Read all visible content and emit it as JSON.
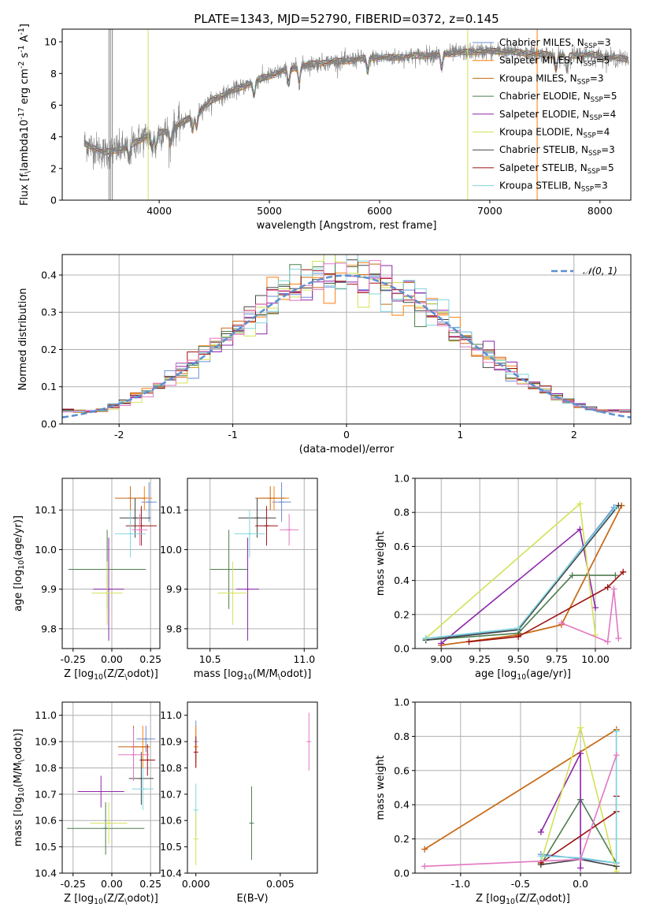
{
  "colors": [
    "#6a8ed6",
    "#ff7f0e",
    "#c46a1a",
    "#4e7d4e",
    "#8e24aa",
    "#d4e157",
    "#444444",
    "#9b1111",
    "#7fd6dc",
    "#e377c2"
  ],
  "series_names": [
    "Chabrier MILES, N$_{SSP}$=3",
    "Salpeter MILES, N$_{SSP}$=5",
    "Kroupa MILES, N$_{SSP}$=3",
    "Chabrier ELODIE, N$_{SSP}$=5",
    "Salpeter ELODIE, N$_{SSP}$=4",
    "Kroupa ELODIE, N$_{SSP}$=4",
    "Chabrier STELIB, N$_{SSP}$=3",
    "Salpeter STELIB, N$_{SSP}$=5",
    "Kroupa STELIB, N$_{SSP}$=3"
  ],
  "chart_data": [
    {
      "type": "line",
      "title": "PLATE=1343, MJD=52790, FIBERID=0372, z=0.145",
      "xlabel": "wavelength [Angstrom, rest frame]",
      "ylabel": "Flux [f$_\\lambda$10$^{-17}$ erg cm$^{-2}$ s$^{-1}$ A$^{-1}$]",
      "xlim": [
        3120,
        8280
      ],
      "ylim": [
        0,
        10.8
      ],
      "xticks": [
        4000,
        5000,
        6000,
        7000,
        8000
      ],
      "yticks": [
        0,
        2,
        4,
        6,
        8,
        10
      ],
      "grid": false,
      "legend": "upper right",
      "model_start": 3320,
      "data_range": [
        3320,
        8260
      ],
      "continuum": [
        [
          3320,
          3.6
        ],
        [
          3500,
          3.0
        ],
        [
          3700,
          3.3
        ],
        [
          3900,
          4.1
        ],
        [
          4100,
          4.4
        ],
        [
          4300,
          5.3
        ],
        [
          4500,
          6.4
        ],
        [
          4700,
          7.0
        ],
        [
          4900,
          7.6
        ],
        [
          5100,
          8.1
        ],
        [
          5300,
          8.5
        ],
        [
          5500,
          8.7
        ],
        [
          5700,
          8.8
        ],
        [
          5900,
          9.0
        ],
        [
          6100,
          9.0
        ],
        [
          6300,
          9.1
        ],
        [
          6500,
          9.2
        ],
        [
          6700,
          9.3
        ],
        [
          6900,
          9.4
        ],
        [
          7100,
          9.4
        ],
        [
          7300,
          9.3
        ],
        [
          7500,
          9.2
        ],
        [
          7700,
          9.1
        ],
        [
          7900,
          9.2
        ],
        [
          8100,
          9.0
        ],
        [
          8260,
          8.9
        ]
      ],
      "series": [
        {
          "name": "Chabrier MILES, N$_{SSP}$=3",
          "color": "#6a8ed6"
        },
        {
          "name": "Salpeter MILES, N$_{SSP}$=5",
          "color": "#ff7f0e"
        },
        {
          "name": "Kroupa MILES, N$_{SSP}$=3",
          "color": "#c46a1a"
        },
        {
          "name": "Chabrier ELODIE, N$_{SSP}$=5",
          "color": "#4e7d4e"
        },
        {
          "name": "Salpeter ELODIE, N$_{SSP}$=4",
          "color": "#8e24aa"
        },
        {
          "name": "Kroupa ELODIE, N$_{SSP}$=4",
          "color": "#d4e157"
        },
        {
          "name": "Chabrier STELIB, N$_{SSP}$=3",
          "color": "#444444"
        },
        {
          "name": "Salpeter STELIB, N$_{SSP}$=5",
          "color": "#9b1111"
        },
        {
          "name": "Kroupa STELIB, N$_{SSP}$=3",
          "color": "#7fd6dc"
        }
      ]
    },
    {
      "type": "histogram",
      "xlabel": "(data-model)/error",
      "ylabel": "Normed distribution",
      "xlim": [
        -2.5,
        2.5
      ],
      "ylim": [
        0,
        0.455
      ],
      "xticks": [
        -2,
        -1,
        0,
        1,
        2
      ],
      "yticks": [
        0.0,
        0.1,
        0.2,
        0.3,
        0.4
      ],
      "grid": true,
      "legend": "upper right",
      "reference_curve": {
        "label": "$\\mathcal{N}(0,1)$",
        "mean": 0,
        "sigma": 1,
        "color": "#5b8fd0"
      },
      "bin_width": 0.1
    },
    {
      "type": "scatter",
      "xlabel": "Z [log$_{10}$($Z/Z_\\odot$)]",
      "ylabel": "age  [log$_{10}$($age/yr$)]",
      "xlim": [
        -0.32,
        0.31
      ],
      "ylim": [
        9.75,
        10.18
      ],
      "xticks": [
        -0.25,
        0.0,
        0.25
      ],
      "yticks": [
        9.8,
        9.9,
        10.0,
        10.1
      ],
      "grid": true,
      "points": [
        {
          "x": 0.24,
          "y": 10.12,
          "xerr": 0.05,
          "yerr": 0.05,
          "color": "#6a8ed6"
        },
        {
          "x": 0.21,
          "y": 10.13,
          "xerr": 0.05,
          "yerr": 0.03,
          "color": "#ff7f0e"
        },
        {
          "x": 0.12,
          "y": 10.13,
          "xerr": 0.1,
          "yerr": 0.03,
          "color": "#c46a1a"
        },
        {
          "x": -0.03,
          "y": 9.95,
          "xerr": 0.25,
          "yerr": 0.1,
          "color": "#4e7d4e"
        },
        {
          "x": -0.02,
          "y": 9.9,
          "xerr": 0.1,
          "yerr": 0.13,
          "color": "#8e24aa"
        },
        {
          "x": -0.03,
          "y": 9.89,
          "xerr": 0.1,
          "yerr": 0.08,
          "color": "#d4e157"
        },
        {
          "x": 0.15,
          "y": 10.08,
          "xerr": 0.1,
          "yerr": 0.05,
          "color": "#444444"
        },
        {
          "x": 0.19,
          "y": 10.06,
          "xerr": 0.1,
          "yerr": 0.05,
          "color": "#9b1111"
        },
        {
          "x": 0.12,
          "y": 10.04,
          "xerr": 0.1,
          "yerr": 0.06,
          "color": "#7fd6dc"
        },
        {
          "x": 0.18,
          "y": 10.05,
          "xerr": 0.05,
          "yerr": 0.04,
          "color": "#e377c2"
        }
      ]
    },
    {
      "type": "scatter",
      "xlabel": "mass [log$_{10}$($M/M_\\odot$)]",
      "ylabel": "",
      "xlim": [
        10.38,
        11.07
      ],
      "ylim": [
        9.75,
        10.18
      ],
      "xticks": [
        10.5,
        11.0
      ],
      "yticks": [
        9.8,
        9.9,
        10.0,
        10.1
      ],
      "grid": true,
      "points": [
        {
          "x": 10.88,
          "y": 10.12,
          "xerr": 0.05,
          "yerr": 0.05,
          "color": "#6a8ed6"
        },
        {
          "x": 10.84,
          "y": 10.13,
          "xerr": 0.08,
          "yerr": 0.03,
          "color": "#ff7f0e"
        },
        {
          "x": 10.82,
          "y": 10.13,
          "xerr": 0.08,
          "yerr": 0.03,
          "color": "#c46a1a"
        },
        {
          "x": 10.6,
          "y": 9.95,
          "xerr": 0.1,
          "yerr": 0.1,
          "color": "#4e7d4e"
        },
        {
          "x": 10.7,
          "y": 9.9,
          "xerr": 0.06,
          "yerr": 0.13,
          "color": "#8e24aa"
        },
        {
          "x": 10.62,
          "y": 9.89,
          "xerr": 0.08,
          "yerr": 0.08,
          "color": "#d4e157"
        },
        {
          "x": 10.75,
          "y": 10.08,
          "xerr": 0.1,
          "yerr": 0.05,
          "color": "#444444"
        },
        {
          "x": 10.8,
          "y": 10.06,
          "xerr": 0.06,
          "yerr": 0.05,
          "color": "#9b1111"
        },
        {
          "x": 10.71,
          "y": 10.04,
          "xerr": 0.08,
          "yerr": 0.06,
          "color": "#7fd6dc"
        },
        {
          "x": 10.92,
          "y": 10.05,
          "xerr": 0.05,
          "yerr": 0.04,
          "color": "#e377c2"
        }
      ]
    },
    {
      "type": "line",
      "xlabel": "age  [log$_{10}$($age/yr$)]",
      "ylabel": "mass weight",
      "xlim": [
        8.83,
        10.23
      ],
      "ylim": [
        0,
        1.0
      ],
      "xticks": [
        9.0,
        9.25,
        9.5,
        9.75,
        10.0
      ],
      "yticks": [
        0.0,
        0.2,
        0.4,
        0.6,
        0.8,
        1.0
      ],
      "grid": true,
      "series": [
        {
          "color": "#6a8ed6",
          "points": [
            [
              8.9,
              0.06
            ],
            [
              9.5,
              0.11
            ],
            [
              10.12,
              0.83
            ]
          ]
        },
        {
          "color": "#ff7f0e",
          "points": [
            [
              9.0,
              0.02
            ],
            [
              9.5,
              0.08
            ],
            [
              9.78,
              0.14
            ],
            [
              10.17,
              0.84
            ]
          ]
        },
        {
          "color": "#c46a1a",
          "points": [
            [
              9.0,
              0.02
            ],
            [
              9.5,
              0.08
            ],
            [
              9.78,
              0.14
            ],
            [
              10.17,
              0.84
            ]
          ]
        },
        {
          "color": "#4e7d4e",
          "points": [
            [
              8.9,
              0.05
            ],
            [
              9.5,
              0.09
            ],
            [
              9.85,
              0.43
            ],
            [
              10.13,
              0.43
            ]
          ]
        },
        {
          "color": "#8e24aa",
          "points": [
            [
              9.0,
              0.03
            ],
            [
              9.9,
              0.7
            ],
            [
              10.0,
              0.24
            ]
          ]
        },
        {
          "color": "#d4e157",
          "points": [
            [
              8.9,
              0.06
            ],
            [
              9.9,
              0.85
            ],
            [
              10.0,
              0.08
            ]
          ]
        },
        {
          "color": "#444444",
          "points": [
            [
              8.9,
              0.05
            ],
            [
              9.5,
              0.11
            ],
            [
              10.15,
              0.84
            ]
          ]
        },
        {
          "color": "#9b1111",
          "points": [
            [
              9.18,
              0.04
            ],
            [
              9.5,
              0.07
            ],
            [
              10.08,
              0.36
            ],
            [
              10.18,
              0.45
            ]
          ]
        },
        {
          "color": "#7fd6dc",
          "points": [
            [
              8.9,
              0.06
            ],
            [
              9.5,
              0.12
            ],
            [
              10.13,
              0.83
            ]
          ]
        },
        {
          "color": "#e377c2",
          "points": [
            [
              9.78,
              0.15
            ],
            [
              10.08,
              0.04
            ],
            [
              10.12,
              0.35
            ],
            [
              10.15,
              0.06
            ]
          ]
        }
      ]
    },
    {
      "type": "scatter",
      "xlabel": "Z [log$_{10}$($Z/Z_\\odot$)]",
      "ylabel": "mass [log$_{10}$($M/M_\\odot$)]",
      "xlim": [
        -0.32,
        0.31
      ],
      "ylim": [
        10.4,
        11.05
      ],
      "xticks": [
        -0.25,
        0.0,
        0.25
      ],
      "yticks": [
        10.4,
        10.5,
        10.6,
        10.7,
        10.8,
        10.9,
        11.0
      ],
      "grid": true,
      "points": [
        {
          "x": 0.22,
          "y": 10.91,
          "xerr": 0.06,
          "yerr": 0.05,
          "color": "#6a8ed6"
        },
        {
          "x": 0.2,
          "y": 10.88,
          "xerr": 0.05,
          "yerr": 0.08,
          "color": "#ff7f0e"
        },
        {
          "x": 0.14,
          "y": 10.88,
          "xerr": 0.1,
          "yerr": 0.08,
          "color": "#c46a1a"
        },
        {
          "x": -0.04,
          "y": 10.57,
          "xerr": 0.25,
          "yerr": 0.1,
          "color": "#4e7d4e"
        },
        {
          "x": -0.07,
          "y": 10.71,
          "xerr": 0.15,
          "yerr": 0.06,
          "color": "#8e24aa"
        },
        {
          "x": -0.02,
          "y": 10.59,
          "xerr": 0.12,
          "yerr": 0.08,
          "color": "#d4e157"
        },
        {
          "x": 0.19,
          "y": 10.76,
          "xerr": 0.08,
          "yerr": 0.1,
          "color": "#444444"
        },
        {
          "x": 0.23,
          "y": 10.83,
          "xerr": 0.05,
          "yerr": 0.06,
          "color": "#9b1111"
        },
        {
          "x": 0.2,
          "y": 10.72,
          "xerr": 0.07,
          "yerr": 0.08,
          "color": "#7fd6dc"
        },
        {
          "x": 0.14,
          "y": 10.85,
          "xerr": 0.1,
          "yerr": 0.1,
          "color": "#e377c2"
        }
      ]
    },
    {
      "type": "scatter",
      "xlabel": "E(B-V)",
      "ylabel": "",
      "xlim": [
        -0.0005,
        0.0072
      ],
      "ylim": [
        10.4,
        11.05
      ],
      "xticks": [
        0.0,
        0.005
      ],
      "yticks": [
        10.4,
        10.5,
        10.6,
        10.7,
        10.8,
        10.9,
        11.0
      ],
      "grid": false,
      "points": [
        {
          "x": 0.0,
          "y": 10.9,
          "yerr": 0.08,
          "color": "#6a8ed6"
        },
        {
          "x": 0.0,
          "y": 10.88,
          "yerr": 0.08,
          "color": "#ff7f0e"
        },
        {
          "x": 0.0,
          "y": 10.86,
          "yerr": 0.06,
          "color": "#9b1111"
        },
        {
          "x": 0.0,
          "y": 10.64,
          "yerr": 0.1,
          "color": "#7fd6dc"
        },
        {
          "x": 0.0,
          "y": 10.53,
          "yerr": 0.1,
          "color": "#d4e157"
        },
        {
          "x": 0.0033,
          "y": 10.59,
          "yerr": 0.14,
          "color": "#4e7d4e"
        },
        {
          "x": 0.0067,
          "y": 10.9,
          "yerr": 0.11,
          "color": "#e377c2"
        }
      ]
    },
    {
      "type": "line",
      "xlabel": "Z [log$_{10}$($Z/Z_\\odot$)]",
      "ylabel": "mass weight",
      "xlim": [
        -1.38,
        0.42
      ],
      "ylim": [
        0,
        1.0
      ],
      "xticks": [
        -1.0,
        -0.5,
        0.0
      ],
      "yticks": [
        0.0,
        0.2,
        0.4,
        0.6,
        0.8,
        1.0
      ],
      "grid": true,
      "series": [
        {
          "color": "#6a8ed6",
          "points": [
            [
              -0.33,
              0.11
            ],
            [
              0.3,
              0.06
            ],
            [
              0.3,
              0.83
            ]
          ]
        },
        {
          "color": "#ff7f0e",
          "points": [
            [
              -1.3,
              0.14
            ],
            [
              0.3,
              0.84
            ]
          ]
        },
        {
          "color": "#c46a1a",
          "points": [
            [
              -1.3,
              0.14
            ],
            [
              0.3,
              0.84
            ]
          ]
        },
        {
          "color": "#4e7d4e",
          "points": [
            [
              -0.33,
              0.05
            ],
            [
              0.0,
              0.43
            ],
            [
              0.3,
              0.06
            ]
          ]
        },
        {
          "color": "#8e24aa",
          "points": [
            [
              -0.33,
              0.24
            ],
            [
              0.0,
              0.7
            ],
            [
              0.0,
              0.03
            ]
          ]
        },
        {
          "color": "#d4e157",
          "points": [
            [
              -0.33,
              0.06
            ],
            [
              0.0,
              0.85
            ],
            [
              0.3,
              0.01
            ]
          ]
        },
        {
          "color": "#444444",
          "points": [
            [
              -0.33,
              0.05
            ],
            [
              0.0,
              0.08
            ],
            [
              0.3,
              0.04
            ]
          ]
        },
        {
          "color": "#9b1111",
          "points": [
            [
              -0.33,
              0.06
            ],
            [
              0.3,
              0.36
            ],
            [
              0.3,
              0.45
            ]
          ]
        },
        {
          "color": "#7fd6dc",
          "points": [
            [
              -0.33,
              0.1
            ],
            [
              0.0,
              0.09
            ],
            [
              0.3,
              0.06
            ],
            [
              0.3,
              0.83
            ]
          ]
        },
        {
          "color": "#e377c2",
          "points": [
            [
              -1.3,
              0.04
            ],
            [
              0.0,
              0.08
            ],
            [
              0.3,
              0.69
            ]
          ]
        }
      ]
    }
  ]
}
